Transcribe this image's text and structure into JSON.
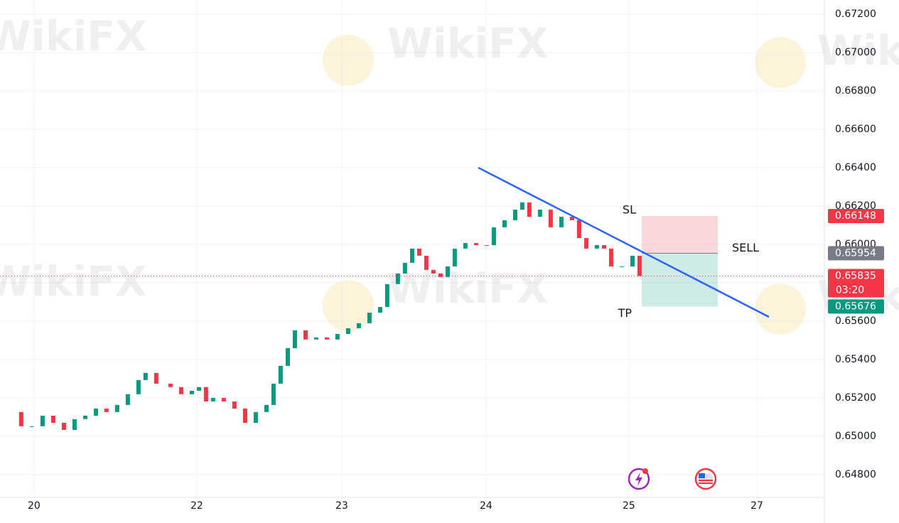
{
  "chart_data": {
    "type": "candlestick",
    "up_color": "#089981",
    "down_color": "#f23645",
    "x": [
      -0.163,
      -0.089,
      -0.015,
      0.059,
      0.133,
      0.207,
      0.281,
      0.355,
      0.429,
      0.502,
      0.576,
      0.65,
      0.724,
      0.773,
      0.847,
      0.946,
      1.02,
      1.094,
      1.143,
      1.192,
      1.241,
      1.315,
      1.389,
      1.463,
      1.537,
      1.611,
      1.66,
      1.709,
      1.759,
      1.808,
      1.882,
      1.956,
      2.03,
      2.103,
      2.177,
      2.251,
      2.325,
      2.399,
      2.448,
      2.522,
      2.571,
      2.621,
      2.67,
      2.719,
      2.768,
      2.818,
      2.867,
      2.916,
      2.99,
      3.064,
      3.138,
      3.187,
      3.261,
      3.335,
      3.384,
      3.433,
      3.507,
      3.581,
      3.655,
      3.729,
      3.778,
      3.828,
      3.901,
      3.951,
      4.0,
      4.074,
      4.148,
      4.197
    ],
    "close": [
      0.65126,
      0.65052,
      0.65052,
      0.65107,
      0.6507,
      0.65033,
      0.65089,
      0.65107,
      0.65144,
      0.65126,
      0.65163,
      0.65219,
      0.65293,
      0.6533,
      0.65274,
      0.65256,
      0.65219,
      0.65237,
      0.65256,
      0.65181,
      0.652,
      0.65181,
      0.65144,
      0.6507,
      0.65126,
      0.65163,
      0.65274,
      0.65367,
      0.65459,
      0.65552,
      0.65504,
      0.65515,
      0.65504,
      0.65533,
      0.65563,
      0.65589,
      0.65644,
      0.65674,
      0.65793,
      0.65848,
      0.65904,
      0.65978,
      0.65941,
      0.65867,
      0.65848,
      0.6583,
      0.65885,
      0.65978,
      0.66007,
      0.65996,
      0.65996,
      0.66089,
      0.66126,
      0.66181,
      0.66219,
      0.66144,
      0.66181,
      0.66089,
      0.66144,
      0.66126,
      0.66033,
      0.65978,
      0.65996,
      0.65978,
      0.65885,
      0.65885,
      0.65941,
      0.65835
    ],
    "xlim": [
      -0.236,
      5.478
    ],
    "xticks": [
      {
        "value": 0,
        "label": "20"
      },
      {
        "value": 1.128,
        "label": "22"
      },
      {
        "value": 2.133,
        "label": "23"
      },
      {
        "value": 3.133,
        "label": "24"
      },
      {
        "value": 4.123,
        "label": "25"
      },
      {
        "value": 5.01,
        "label": "27"
      }
    ],
    "ylim": [
      0.64681,
      0.67274
    ],
    "yticks": [
      {
        "value": 0.672,
        "label": "0.67200"
      },
      {
        "value": 0.67,
        "label": "0.67000"
      },
      {
        "value": 0.668,
        "label": "0.66800"
      },
      {
        "value": 0.666,
        "label": "0.66600"
      },
      {
        "value": 0.664,
        "label": "0.66400"
      },
      {
        "value": 0.662,
        "label": "0.66200"
      },
      {
        "value": 0.66,
        "label": "0.66000"
      },
      {
        "value": 0.658,
        "label": "0.65800"
      },
      {
        "value": 0.656,
        "label": "0.65600"
      },
      {
        "value": 0.654,
        "label": "0.65400"
      },
      {
        "value": 0.652,
        "label": "0.65200"
      },
      {
        "value": 0.65,
        "label": "0.65000"
      },
      {
        "value": 0.648,
        "label": "0.64800"
      }
    ],
    "grid": true,
    "trendline": {
      "x": [
        3.079,
        5.094
      ],
      "y": [
        0.664,
        0.65622
      ],
      "color": "#2962ff"
    },
    "position": {
      "label": "SELL",
      "x": [
        4.212,
        4.739
      ],
      "entry": 0.65954,
      "stop": 0.66148,
      "target": 0.65676,
      "stop_label": "SL",
      "target_label": "TP"
    },
    "last_price": 0.65835,
    "countdown": "03:20",
    "watermark": "WikiFX"
  }
}
